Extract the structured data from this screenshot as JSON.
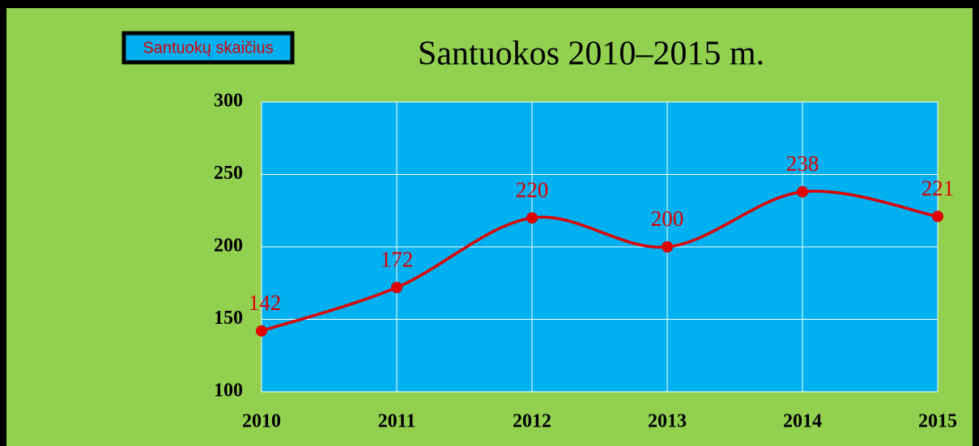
{
  "chart_data": {
    "type": "line",
    "title": "Santuokos 2010–2015 m.",
    "categories": [
      "2010",
      "2011",
      "2012",
      "2013",
      "2014",
      "2015"
    ],
    "series": [
      {
        "name": "Santuokų skaičius",
        "color": "#e00000",
        "values": [
          142,
          172,
          220,
          200,
          238,
          221
        ]
      }
    ],
    "ylim": [
      100,
      300
    ],
    "yticks": [
      100,
      150,
      200,
      250,
      300
    ],
    "grid": true,
    "smooth": true,
    "legend": "top-left"
  }
}
